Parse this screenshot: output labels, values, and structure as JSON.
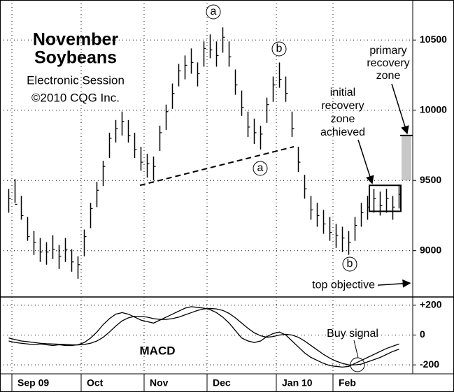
{
  "chart_data": [
    {
      "type": "ohlc",
      "title": [
        "November",
        "Soybeans"
      ],
      "subtitle": [
        "Electronic Session",
        "©2010 CQG Inc."
      ],
      "categories": [
        null,
        "Sep 09",
        null,
        null,
        null,
        null,
        null,
        null,
        null,
        null,
        null,
        null,
        "Oct",
        null,
        null,
        null,
        null,
        null,
        null,
        null,
        null,
        null,
        "Nov",
        null,
        null,
        null,
        null,
        null,
        null,
        null,
        null,
        null,
        "Dec",
        null,
        null,
        null,
        null,
        null,
        null,
        null,
        null,
        null,
        null,
        "Jan 10",
        null,
        null,
        null,
        null,
        null,
        null,
        null,
        null,
        "Feb",
        null,
        null,
        null,
        null,
        null,
        null,
        null,
        null,
        null,
        null
      ],
      "high": [
        9440,
        9510,
        9390,
        9240,
        9140,
        9090,
        9060,
        9110,
        9040,
        9090,
        9010,
        8960,
        9150,
        9340,
        9490,
        9640,
        9840,
        9930,
        9990,
        9930,
        9840,
        9740,
        9690,
        9670,
        9890,
        10040,
        10190,
        10330,
        10390,
        10440,
        10340,
        10490,
        10540,
        10490,
        10590,
        10490,
        10290,
        10140,
        9990,
        9940,
        9890,
        10090,
        10240,
        10340,
        10240,
        9990,
        9740,
        9540,
        9390,
        9340,
        9290,
        9240,
        9190,
        9170,
        9140,
        9240,
        9340,
        9390,
        9440,
        9420,
        9440,
        9390,
        9470
      ],
      "low": [
        9270,
        9340,
        9220,
        9070,
        8970,
        8920,
        8900,
        8940,
        8870,
        8920,
        8850,
        8800,
        8960,
        9160,
        9310,
        9460,
        9660,
        9770,
        9820,
        9770,
        9660,
        9570,
        9520,
        9500,
        9710,
        9860,
        10010,
        10170,
        10220,
        10260,
        10170,
        10310,
        10370,
        10310,
        10410,
        10310,
        10110,
        9960,
        9810,
        9760,
        9720,
        9910,
        10060,
        10160,
        10060,
        9810,
        9560,
        9370,
        9220,
        9170,
        9120,
        9070,
        9020,
        8990,
        8970,
        9070,
        9170,
        9220,
        9270,
        9250,
        9270,
        9220,
        9300
      ],
      "close": [
        9370,
        9330,
        9250,
        9100,
        9060,
        8990,
        8990,
        9010,
        8960,
        9010,
        8920,
        8900,
        9100,
        9300,
        9430,
        9600,
        9800,
        9870,
        9920,
        9820,
        9720,
        9630,
        9620,
        9600,
        9840,
        9990,
        10120,
        10280,
        10320,
        10340,
        10260,
        10440,
        10430,
        10390,
        10520,
        10380,
        10180,
        10020,
        9880,
        9840,
        9830,
        10040,
        10180,
        10220,
        10120,
        9870,
        9630,
        9440,
        9290,
        9250,
        9190,
        9130,
        9110,
        9090,
        9060,
        9180,
        9270,
        9310,
        9370,
        9320,
        9370,
        9310,
        9400
      ],
      "color": "#000000",
      "ylim": [
        8670,
        10785
      ],
      "yticks": [
        9000,
        9500,
        10000,
        10500
      ],
      "grid": true,
      "trendline": [
        9465,
        9740
      ],
      "primary_recovery_zone": {
        "low": 9500,
        "high": 9820,
        "color": "#c8c8c8"
      },
      "initial_recovery_zone": {
        "low": 9280,
        "high": 9465
      },
      "top_objective": 8754,
      "annotations": [
        {
          "lines": [
            "a"
          ]
        },
        {
          "lines": [
            "b"
          ]
        },
        {
          "lines": [
            "a"
          ]
        },
        {
          "lines": [
            "b"
          ]
        },
        {
          "lines": [
            "primary",
            "recovery",
            "zone"
          ]
        },
        {
          "lines": [
            "initial",
            "recovery",
            "zone",
            "achieved"
          ]
        },
        {
          "lines": [
            "top objective"
          ]
        }
      ]
    },
    {
      "type": "line",
      "title": "MACD",
      "series": [
        {
          "color": "#000000",
          "values": [
            -40,
            -50,
            -55,
            -60,
            -65,
            -60,
            -65,
            -70,
            -65,
            -70,
            -70,
            -65,
            -50,
            -20,
            20,
            70,
            110,
            140,
            150,
            140,
            120,
            100,
            90,
            80,
            100,
            120,
            140,
            160,
            180,
            190,
            185,
            180,
            170,
            150,
            120,
            80,
            30,
            -20,
            -40,
            -50,
            -40,
            -10,
            10,
            20,
            0,
            -40,
            -80,
            -120,
            -150,
            -170,
            -190,
            -205,
            -210,
            -215,
            -210,
            -190,
            -170,
            -150,
            -130,
            -110,
            -90,
            -75,
            -60
          ]
        },
        {
          "color": "#000000",
          "values": [
            -20,
            -30,
            -40,
            -45,
            -50,
            -55,
            -58,
            -60,
            -62,
            -63,
            -65,
            -66,
            -63,
            -55,
            -40,
            -15,
            20,
            60,
            95,
            115,
            125,
            125,
            120,
            110,
            105,
            105,
            110,
            120,
            135,
            150,
            165,
            175,
            178,
            175,
            165,
            145,
            115,
            80,
            45,
            15,
            -5,
            -15,
            -10,
            0,
            5,
            0,
            -15,
            -40,
            -70,
            -100,
            -130,
            -155,
            -175,
            -190,
            -200,
            -200,
            -195,
            -180,
            -165,
            -150,
            -130,
            -110,
            -95
          ]
        }
      ],
      "ylim": [
        -260,
        255
      ],
      "yticks": [
        {
          "value": 200,
          "label": "+200"
        },
        0,
        -200
      ],
      "grid": true,
      "annotations": [
        {
          "lines": [
            "Buy signal"
          ]
        }
      ]
    }
  ]
}
